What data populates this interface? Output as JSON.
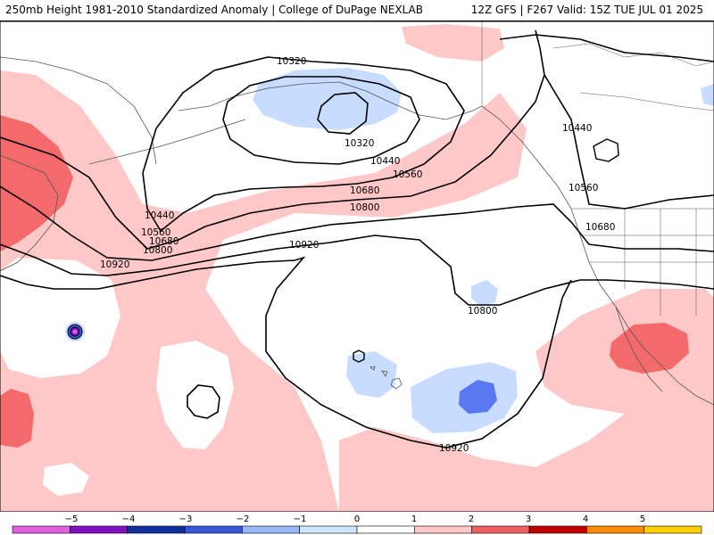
{
  "header": {
    "title_left": "250mb Height 1981-2010 Standardized Anomaly | College of DuPage NEXLAB",
    "title_right": "12Z GFS | F267 Valid: 15Z TUE JUL 01 2025"
  },
  "map": {
    "contour_labels": [
      "10320",
      "10320",
      "10440",
      "10440",
      "10440",
      "10560",
      "10560",
      "10560",
      "10680",
      "10680",
      "10680",
      "10800",
      "10800",
      "10800",
      "10920",
      "10920",
      "10920"
    ],
    "fill_colors": {
      "pos1": "#ffc8c8",
      "pos2": "#f46a6a",
      "neg1": "#c8dcff",
      "neg2": "#5a78f0",
      "land": "#ffffff"
    }
  },
  "colorbar": {
    "ticks": [
      "−5",
      "−4",
      "−3",
      "−2",
      "−1",
      "0",
      "1",
      "2",
      "3",
      "4",
      "5"
    ],
    "colors": [
      "#e060e0",
      "#8010c0",
      "#1030a0",
      "#3858d8",
      "#9ab8f8",
      "#d0e4ff",
      "#ffffff",
      "#ffc8c8",
      "#f06060",
      "#c00000",
      "#ff8c00",
      "#ffd000"
    ]
  }
}
